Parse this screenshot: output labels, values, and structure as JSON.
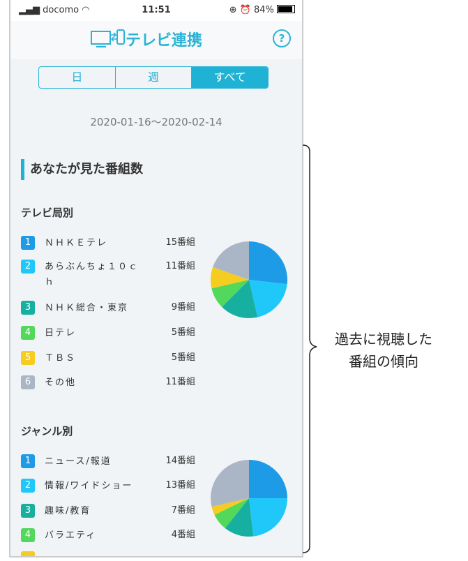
{
  "status": {
    "carrier": "docomo",
    "time": "11:51",
    "battery": "84%"
  },
  "header": {
    "title": "テレビ連携",
    "help": "?"
  },
  "tabs": [
    {
      "label": "日"
    },
    {
      "label": "週"
    },
    {
      "label": "すべて",
      "active": true
    }
  ],
  "date_range": "2020-01-16〜2020-02-14",
  "section_title": "あなたが見た番組数",
  "colors": [
    "#1e9be6",
    "#20c8fa",
    "#17b0a0",
    "#52d85a",
    "#f5cc20",
    "#aab6c6"
  ],
  "stations": {
    "title": "テレビ局別",
    "items": [
      {
        "n": "1",
        "name": "ＮＨＫＥテレ",
        "count": "15番組"
      },
      {
        "n": "2",
        "name": "あらぶんちょ１０ｃｈ",
        "count": "11番組"
      },
      {
        "n": "3",
        "name": "ＮＨＫ総合・東京",
        "count": "9番組"
      },
      {
        "n": "4",
        "name": "日テレ",
        "count": "5番組"
      },
      {
        "n": "5",
        "name": "ＴＢＳ",
        "count": "5番組"
      },
      {
        "n": "6",
        "name": "その他",
        "count": "11番組"
      }
    ]
  },
  "genres": {
    "title": "ジャンル別",
    "items": [
      {
        "n": "1",
        "name": "ニュース/報道",
        "count": "14番組"
      },
      {
        "n": "2",
        "name": "情報/ワイドショー",
        "count": "13番組"
      },
      {
        "n": "3",
        "name": "趣味/教育",
        "count": "7番組"
      },
      {
        "n": "4",
        "name": "バラエティ",
        "count": "4番組"
      }
    ]
  },
  "chart_data": [
    {
      "type": "pie",
      "values": [
        15,
        11,
        9,
        5,
        5,
        11
      ]
    },
    {
      "type": "pie",
      "values": [
        14,
        13,
        7,
        4,
        2,
        16
      ]
    }
  ],
  "annotation": {
    "line1": "過去に視聴した",
    "line2": "番組の傾向"
  }
}
